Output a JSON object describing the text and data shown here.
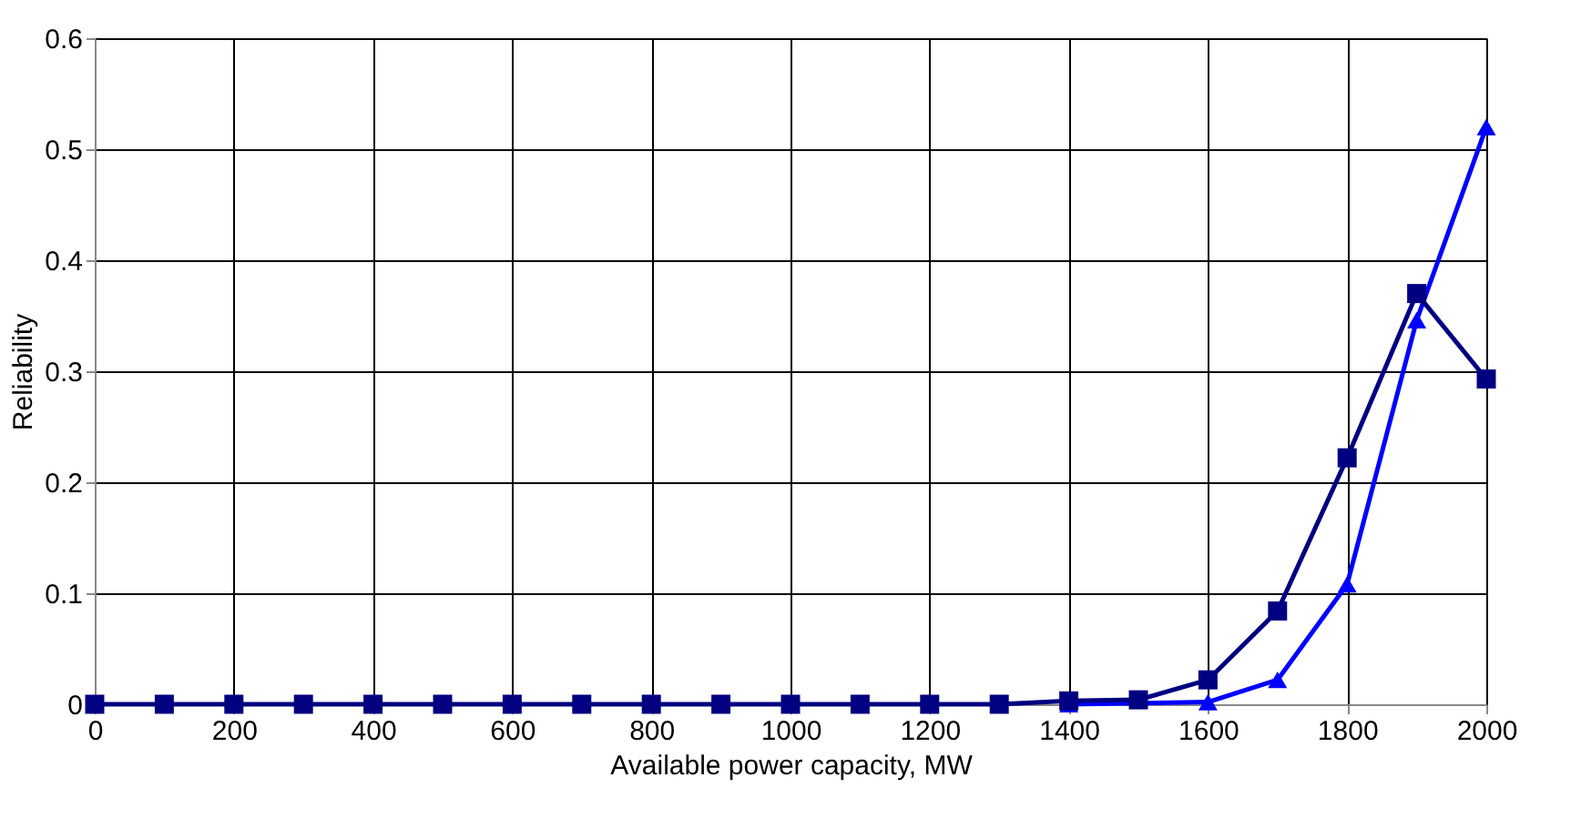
{
  "chart_data": {
    "type": "line",
    "xlabel": "Available power capacity, MW",
    "ylabel": "Reliability",
    "x": [
      0,
      100,
      200,
      300,
      400,
      500,
      600,
      700,
      800,
      900,
      1000,
      1100,
      1200,
      1300,
      1400,
      1500,
      1600,
      1700,
      1800,
      1900,
      2000
    ],
    "series": [
      {
        "color": "#0000ff",
        "marker": "triangle",
        "values": [
          null,
          null,
          null,
          null,
          null,
          null,
          null,
          null,
          null,
          null,
          null,
          null,
          null,
          null,
          0,
          null,
          0.002,
          0.022,
          0.108,
          0.346,
          0.52
        ]
      },
      {
        "color": "#000080",
        "marker": "square",
        "values": [
          0,
          0,
          0,
          0,
          0,
          0,
          0,
          0,
          0,
          0,
          0,
          0,
          0,
          0,
          0.003,
          0.004,
          0.022,
          0.084,
          0.222,
          0.37,
          0.293
        ]
      }
    ],
    "xlim": [
      0,
      2000
    ],
    "xticks": [
      0,
      200,
      400,
      600,
      800,
      1000,
      1200,
      1400,
      1600,
      1800,
      2000
    ],
    "ylim": [
      0,
      0.6
    ],
    "yticks": [
      0,
      0.1,
      0.2,
      0.3,
      0.4,
      0.5,
      0.6
    ],
    "grid": true
  }
}
